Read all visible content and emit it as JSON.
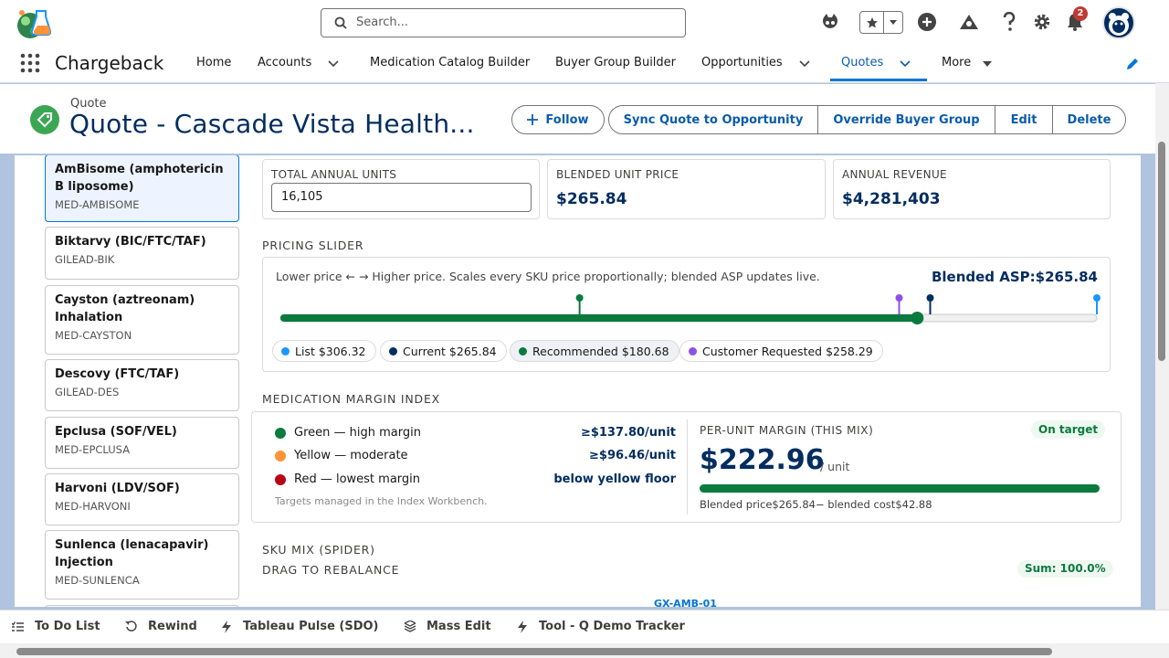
{
  "header": {
    "search_placeholder": "Search...",
    "notification_count": "2"
  },
  "nav": {
    "app_name": "Chargeback",
    "items": [
      {
        "label": "Home"
      },
      {
        "label": "Accounts"
      },
      {
        "label": "Medication Catalog Builder"
      },
      {
        "label": "Buyer Group Builder"
      },
      {
        "label": "Opportunities"
      },
      {
        "label": "Quotes"
      },
      {
        "label": "More"
      }
    ],
    "active": "Quotes"
  },
  "record": {
    "object_label": "Quote",
    "title": "Quote - Cascade Vista Health...",
    "buttons": {
      "follow": "Follow",
      "sync": "Sync Quote to Opportunity",
      "override": "Override Buyer Group",
      "edit": "Edit",
      "delete": "Delete"
    }
  },
  "sku_list": [
    {
      "name": "AmBisome (amphotericin B liposome)",
      "code": "MED-AMBISOME",
      "selected": true
    },
    {
      "name": "Biktarvy (BIC/FTC/TAF)",
      "code": "GILEAD-BIK"
    },
    {
      "name": "Cayston (aztreonam) Inhalation",
      "code": "MED-CAYSTON"
    },
    {
      "name": "Descovy (FTC/TAF)",
      "code": "GILEAD-DES"
    },
    {
      "name": "Epclusa (SOF/VEL)",
      "code": "MED-EPCLUSA"
    },
    {
      "name": "Harvoni (LDV/SOF)",
      "code": "MED-HARVONI"
    },
    {
      "name": "Sunlenca (lenacapavir) Injection",
      "code": "MED-SUNLENCA"
    }
  ],
  "metrics": {
    "total_units_label": "TOTAL ANNUAL UNITS",
    "total_units_value": "16,105",
    "blended_price_label": "BLENDED UNIT PRICE",
    "blended_price_value": "$265.84",
    "annual_revenue_label": "ANNUAL REVENUE",
    "annual_revenue_value": "$4,281,403"
  },
  "pricing_slider": {
    "section_label": "PRICING SLIDER",
    "hint": "Lower price ← → Higher price. Scales every SKU price proportionally; blended ASP updates live.",
    "blended_asp_label": "Blended ASP:",
    "blended_asp_value": "$265.84",
    "level": 0.78,
    "markers": [
      {
        "name": "Recommended",
        "value": 180.68,
        "color": "#0b7a3e"
      },
      {
        "name": "Customer Requested",
        "value": 258.29,
        "color": "#9050e9"
      },
      {
        "name": "Current",
        "value": 265.84,
        "color": "#032d60"
      },
      {
        "name": "List",
        "value": 306.32,
        "color": "#1b96ff"
      }
    ],
    "chips": {
      "list": "List $306.32",
      "current": "Current $265.84",
      "recommended": "Recommended $180.68",
      "customer": "Customer Requested $258.29"
    }
  },
  "margin_index": {
    "section_label": "MEDICATION MARGIN INDEX",
    "legend": [
      {
        "label": "Green — high margin",
        "value": "≥$137.80/unit",
        "color": "#0b7a3e"
      },
      {
        "label": "Yellow — moderate",
        "value": "≥$96.46/unit",
        "color": "#fe9339"
      },
      {
        "label": "Red — lowest margin",
        "value": "below yellow floor",
        "color": "#ba0517"
      }
    ],
    "footnote": "Targets managed in the Index Workbench.",
    "per_unit_label": "PER-UNIT MARGIN (THIS MIX)",
    "status": "On target",
    "margin_value": "$222.96",
    "margin_unit": "/ unit",
    "margin_fill": 1.0,
    "breakdown": {
      "price_label": "Blended price",
      "price_value": "$265.84",
      "cost_label": "− blended cost",
      "cost_value": "$42.88"
    }
  },
  "sku_mix": {
    "section_label": "SKU MIX (SPIDER)",
    "sub_label": "DRAG TO REBALANCE",
    "sum": "Sum: 100.0%",
    "first_axis": "GX-AMB-01"
  },
  "utility_bar": {
    "items": [
      "To Do List",
      "Rewind",
      "Tableau Pulse (SDO)",
      "Mass Edit",
      "Tool - Q Demo Tracker"
    ]
  }
}
